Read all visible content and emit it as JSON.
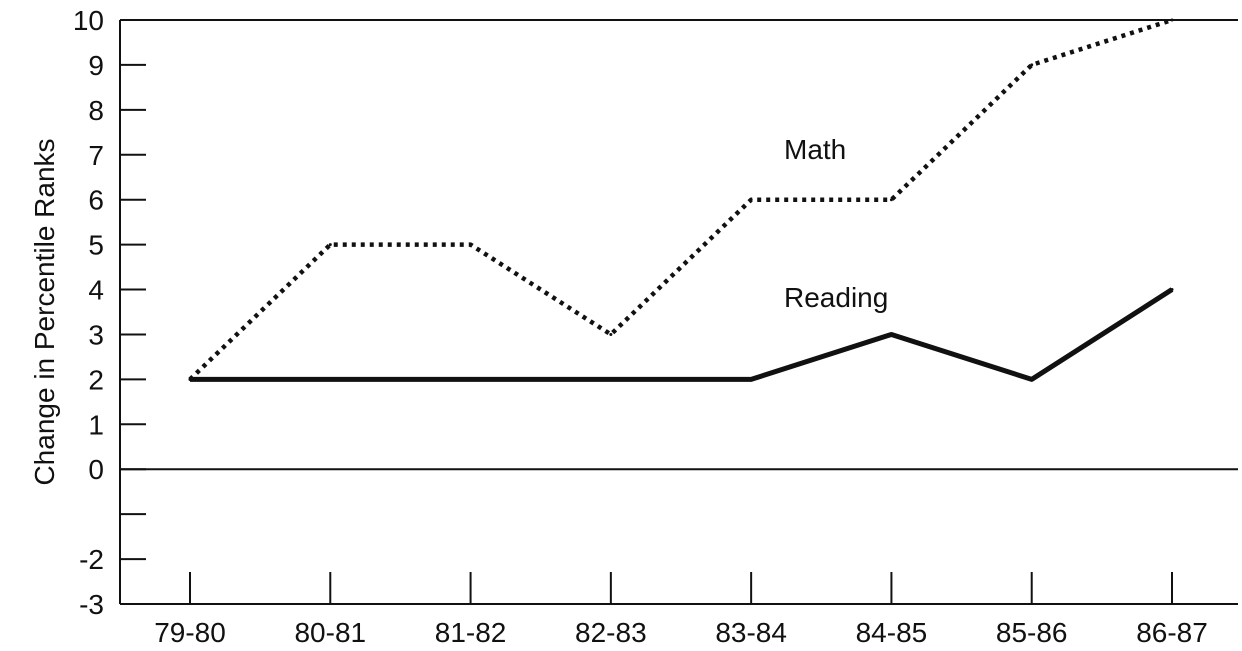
{
  "chart_data": {
    "type": "line",
    "ylabel": "Change in Percentile Ranks",
    "xlabel": "",
    "categories": [
      "79-80",
      "80-81",
      "81-82",
      "82-83",
      "83-84",
      "84-85",
      "85-86",
      "86-87"
    ],
    "ylim": [
      -3,
      10
    ],
    "yticks": [
      -3,
      -2,
      -1,
      0,
      1,
      2,
      3,
      4,
      5,
      6,
      7,
      8,
      9,
      10
    ],
    "ytick_labels": [
      "-3",
      "-2",
      "",
      "0",
      "1",
      "2",
      "3",
      "4",
      "5",
      "6",
      "7",
      "8",
      "9",
      "10"
    ],
    "grid": false,
    "zero_line": true,
    "series": [
      {
        "name": "Math",
        "style": "dotted",
        "color": "#111111",
        "values": [
          2,
          5,
          5,
          3,
          6,
          6,
          9,
          10
        ]
      },
      {
        "name": "Reading",
        "style": "solid",
        "color": "#111111",
        "values": [
          2,
          2,
          2,
          2,
          2,
          3,
          2,
          4
        ]
      }
    ]
  }
}
